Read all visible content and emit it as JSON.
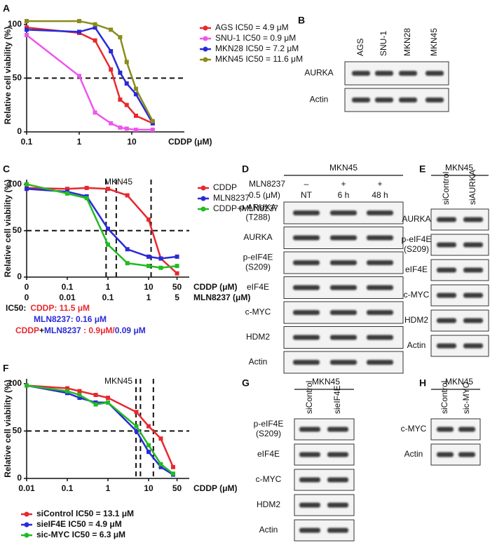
{
  "chart_data": [
    {
      "type": "line",
      "panel": "A",
      "ylabel": "Relative cell viability (%)",
      "xlabel": "CDDP (μM)",
      "xlabel_color": "#111",
      "xlog": true,
      "xlim": [
        0.1,
        100
      ],
      "xticks": [
        0.1,
        1,
        10
      ],
      "ylim": [
        0,
        105
      ],
      "yticks": [
        0,
        50,
        100
      ],
      "hlines": [
        50
      ],
      "vlines": [],
      "legend": "right",
      "legend_colored": false,
      "series": [
        {
          "name": "AGS IC50 = 4.9 μM",
          "color": "#e8282e",
          "x": [
            0.1,
            1,
            2,
            4,
            6,
            8,
            12,
            25
          ],
          "values": [
            97,
            92,
            85,
            58,
            30,
            25,
            15,
            8
          ]
        },
        {
          "name": "SNU-1 IC50 = 0.9 μM",
          "color": "#ee55ee",
          "x": [
            0.1,
            1,
            2,
            4,
            6,
            8,
            12,
            25
          ],
          "values": [
            90,
            52,
            18,
            8,
            4,
            3,
            2,
            2
          ]
        },
        {
          "name": "MKN28 IC50 = 7.2 μM",
          "color": "#2a2ad8",
          "x": [
            0.1,
            1,
            2,
            4,
            6,
            8,
            12,
            25
          ],
          "values": [
            95,
            93,
            97,
            75,
            55,
            45,
            35,
            8
          ]
        },
        {
          "name": "MKN45 IC50 = 11.6 μM",
          "color": "#8b8b1e",
          "x": [
            0.1,
            1,
            2,
            4,
            6,
            8,
            12,
            25
          ],
          "values": [
            103,
            103,
            100,
            95,
            88,
            65,
            40,
            10
          ]
        }
      ]
    },
    {
      "type": "line",
      "panel": "C",
      "title": "MKN45",
      "ylabel": "Relative cell viability (%)",
      "xlabel": "CDDP (μM)",
      "xlabel_color": "#e8282e",
      "xlabel2": "MLN8237 (μM)",
      "xlabel2_color": "#2a2ad8",
      "xticks2": [
        "0",
        "0.01",
        "0.1",
        "1",
        "5"
      ],
      "xlog": true,
      "xlim": [
        0.01,
        100
      ],
      "xticks": [
        {
          "value": 0.01,
          "label": "0"
        },
        0.1,
        1,
        10,
        50
      ],
      "ylim": [
        0,
        105
      ],
      "yticks": [
        0,
        50,
        100
      ],
      "hlines": [
        50
      ],
      "vlines": [
        0.9,
        1.6,
        11.5
      ],
      "legend": "right",
      "legend_colored": false,
      "series": [
        {
          "name": "CDDP",
          "color": "#e8282e",
          "x": [
            0.01,
            0.1,
            0.3,
            1,
            3,
            10,
            20,
            50
          ],
          "values": [
            96,
            95,
            96,
            95,
            88,
            62,
            20,
            4
          ]
        },
        {
          "name": "MLN8237",
          "color": "#2a2ad8",
          "x": [
            0.01,
            0.1,
            0.3,
            1,
            3,
            10,
            20,
            50
          ],
          "values": [
            95,
            92,
            87,
            52,
            30,
            22,
            20,
            22
          ]
        },
        {
          "name": "CDDP+MLN8237",
          "color": "#22bb22",
          "x": [
            0.01,
            0.1,
            0.3,
            1,
            3,
            10,
            20,
            50
          ],
          "values": [
            100,
            90,
            85,
            35,
            15,
            12,
            10,
            12
          ]
        }
      ],
      "annotations": [
        [
          {
            "text": "IC50:",
            "color": "#111"
          },
          {
            "text": "CDDP: 11.5 μM",
            "color": "#e8282e"
          }
        ],
        [
          {
            "text": "MLN8237: 0.16 μM",
            "color": "#2a2ad8"
          }
        ],
        [
          {
            "text": "CDDP",
            "color": "#e8282e"
          },
          {
            "text": "+",
            "color": "#111"
          },
          {
            "text": "MLN8237",
            "color": "#2a2ad8"
          },
          {
            "text": " : 0.9μM/",
            "color": "#e8282e"
          },
          {
            "text": "0.09 μM",
            "color": "#2a2ad8"
          }
        ]
      ]
    },
    {
      "type": "line",
      "panel": "F",
      "title": "MKN45",
      "ylabel": "Relative cell viability (%)",
      "xlabel": "CDDP (μM)",
      "xlabel_color": "#111",
      "xlog": true,
      "xlim": [
        0.01,
        100
      ],
      "xticks": [
        0.01,
        0.1,
        1,
        10,
        50
      ],
      "ylim": [
        0,
        105
      ],
      "yticks": [
        0,
        50,
        100
      ],
      "hlines": [
        50
      ],
      "vlines": [
        4.9,
        6.3,
        13.1
      ],
      "legend": "bottom",
      "legend_colored": true,
      "series": [
        {
          "name": "siControl   IC50 = 13.1 μM",
          "color": "#e8282e",
          "x": [
            0.01,
            0.1,
            0.2,
            0.5,
            1,
            5,
            10,
            20,
            40
          ],
          "values": [
            98,
            95,
            92,
            88,
            85,
            70,
            55,
            42,
            12
          ]
        },
        {
          "name": "sieIF4E     IC50 = 4.9 μM",
          "color": "#2a2ad8",
          "x": [
            0.01,
            0.1,
            0.2,
            0.5,
            1,
            5,
            10,
            20,
            40
          ],
          "values": [
            98,
            90,
            85,
            80,
            80,
            50,
            28,
            12,
            4
          ]
        },
        {
          "name": "sic-MYC    IC50 = 6.3 μM",
          "color": "#22bb22",
          "x": [
            0.01,
            0.1,
            0.2,
            0.5,
            1,
            5,
            10,
            20,
            40
          ],
          "values": [
            98,
            92,
            88,
            78,
            80,
            55,
            35,
            15,
            5
          ]
        }
      ]
    }
  ],
  "blots": [
    {
      "panel": "B",
      "lanes": [
        "AGS",
        "SNU-1",
        "MKN28",
        "MKN45"
      ],
      "rows": [
        {
          "label": [
            "AURKA"
          ]
        },
        {
          "label": [
            "Actin"
          ]
        }
      ]
    },
    {
      "panel": "D",
      "title": "MKN45",
      "treatment": {
        "label": "MLN8237",
        "dose": "0.5 (μM)",
        "signs": [
          "–",
          "+",
          "+"
        ]
      },
      "lanes": [
        "NT",
        "6 h",
        "48 h"
      ],
      "rows": [
        {
          "label": [
            "p-ARUKA",
            "(T288)"
          ]
        },
        {
          "label": [
            "AURKA"
          ]
        },
        {
          "label": [
            "p-eIF4E",
            "(S209)"
          ]
        },
        {
          "label": [
            "eIF4E"
          ]
        },
        {
          "label": [
            "c-MYC"
          ]
        },
        {
          "label": [
            "HDM2"
          ]
        },
        {
          "label": [
            "Actin"
          ]
        }
      ]
    },
    {
      "panel": "E",
      "title": "MKN45",
      "lanes": [
        "siControl",
        "siAURKA"
      ],
      "rows": [
        {
          "label": [
            "AURKA"
          ]
        },
        {
          "label": [
            "p-eIF4E",
            "(S209)"
          ]
        },
        {
          "label": [
            "eIF4E"
          ]
        },
        {
          "label": [
            "c-MYC"
          ]
        },
        {
          "label": [
            "HDM2"
          ]
        },
        {
          "label": [
            "Actin"
          ]
        }
      ]
    },
    {
      "panel": "G",
      "title": "MKN45",
      "lanes": [
        "siControl",
        "sieIF4E"
      ],
      "rows": [
        {
          "label": [
            "p-eIF4E",
            "(S209)"
          ]
        },
        {
          "label": [
            "eIF4E"
          ]
        },
        {
          "label": [
            "c-MYC"
          ]
        },
        {
          "label": [
            "HDM2"
          ]
        },
        {
          "label": [
            "Actin"
          ]
        }
      ]
    },
    {
      "panel": "H",
      "title": "MKN45",
      "lanes": [
        "siControl",
        "sic-MYC"
      ],
      "rows": [
        {
          "label": [
            "c-MYC"
          ]
        },
        {
          "label": [
            "Actin"
          ]
        }
      ]
    }
  ]
}
